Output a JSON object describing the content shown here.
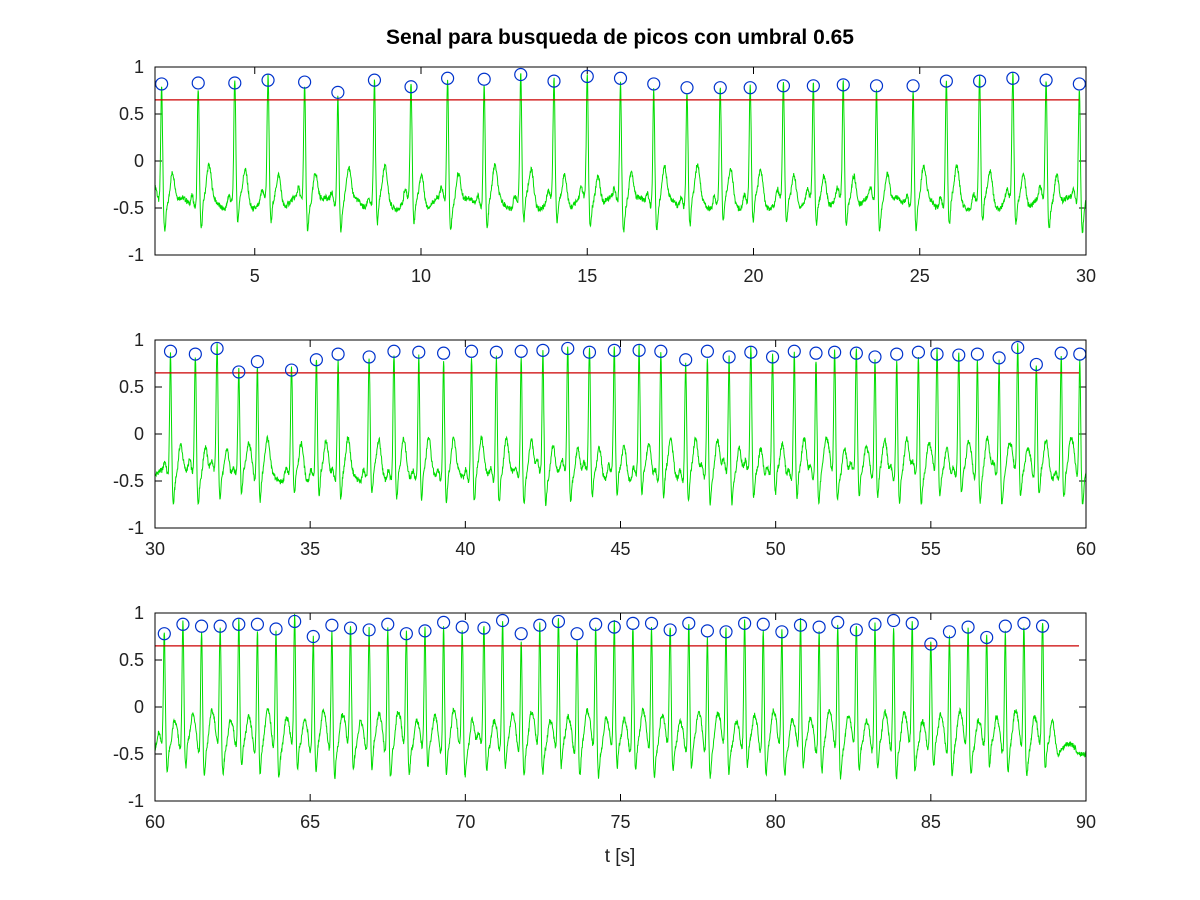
{
  "figure": {
    "title": "Senal para busqueda de picos con umbral 0.65",
    "xlabel": "t [s]"
  },
  "colors": {
    "signal": "#00dd00",
    "threshold": "#cc0000",
    "peaks": "#0033cc",
    "axes": "#000000"
  },
  "chart_data": [
    {
      "type": "line",
      "xlim": [
        2,
        30
      ],
      "ylim": [
        -1,
        1
      ],
      "xticks": [
        5,
        10,
        15,
        20,
        25,
        30
      ],
      "yticks": [
        -1,
        -0.5,
        0,
        0.5,
        1
      ],
      "threshold": 0.65,
      "peaks_x": [
        2.2,
        3.3,
        4.4,
        5.4,
        6.5,
        7.5,
        8.6,
        9.7,
        10.8,
        11.9,
        13.0,
        14.0,
        15.0,
        16.0,
        17.0,
        18.0,
        19.0,
        19.9,
        20.9,
        21.8,
        22.7,
        23.7,
        24.8,
        25.8,
        26.8,
        27.8,
        28.8,
        29.8
      ],
      "peaks_y": [
        0.82,
        0.83,
        0.83,
        0.86,
        0.84,
        0.73,
        0.86,
        0.79,
        0.88,
        0.87,
        0.92,
        0.85,
        0.9,
        0.88,
        0.82,
        0.78,
        0.78,
        0.78,
        0.8,
        0.8,
        0.81,
        0.8,
        0.8,
        0.85,
        0.85,
        0.88,
        0.86,
        0.82
      ]
    },
    {
      "type": "line",
      "xlim": [
        30,
        60
      ],
      "ylim": [
        -1,
        1
      ],
      "xticks": [
        30,
        35,
        40,
        45,
        50,
        55,
        60
      ],
      "yticks": [
        -1,
        -0.5,
        0,
        0.5,
        1
      ],
      "threshold": 0.65,
      "peaks_x": [
        30.5,
        31.3,
        32.0,
        32.7,
        33.3,
        34.4,
        35.2,
        35.9,
        36.9,
        37.7,
        38.5,
        39.3,
        40.2,
        41.0,
        41.8,
        42.5,
        43.3,
        44.0,
        44.8,
        45.6,
        46.3,
        47.1,
        47.8,
        48.5,
        49.2,
        49.9,
        50.6,
        51.3,
        51.9,
        52.6,
        53.2,
        53.9,
        54.6,
        55.2,
        55.9,
        56.5,
        57.2,
        57.8,
        58.4,
        59.2,
        59.8
      ],
      "peaks_y": [
        0.88,
        0.85,
        0.91,
        0.66,
        0.77,
        0.68,
        0.79,
        0.85,
        0.82,
        0.88,
        0.87,
        0.86,
        0.88,
        0.87,
        0.88,
        0.89,
        0.91,
        0.87,
        0.89,
        0.89,
        0.88,
        0.79,
        0.88,
        0.82,
        0.87,
        0.82,
        0.88,
        0.86,
        0.87,
        0.86,
        0.82,
        0.85,
        0.87,
        0.85,
        0.84,
        0.85,
        0.81,
        0.92,
        0.74,
        0.86,
        0.85
      ]
    },
    {
      "type": "line",
      "xlim": [
        60,
        90
      ],
      "ylim": [
        -1,
        1
      ],
      "xticks": [
        60,
        65,
        70,
        75,
        80,
        85,
        90
      ],
      "yticks": [
        -1,
        -0.5,
        0,
        0.5,
        1
      ],
      "threshold": 0.65,
      "peaks_x": [
        60.3,
        60.9,
        61.5,
        62.1,
        62.7,
        63.3,
        63.9,
        64.5,
        65.1,
        65.7,
        66.3,
        66.9,
        67.5,
        68.1,
        68.7,
        69.3,
        69.9,
        70.6,
        71.2,
        71.8,
        72.4,
        73.0,
        73.6,
        74.2,
        74.8,
        75.4,
        76.0,
        76.6,
        77.2,
        77.8,
        78.4,
        79.0,
        79.6,
        80.2,
        80.8,
        81.4,
        82.0,
        82.6,
        83.2,
        83.8,
        84.4,
        85.0,
        85.6,
        86.2,
        86.8,
        87.4,
        88.0,
        88.6
      ],
      "peaks_y": [
        0.78,
        0.88,
        0.86,
        0.86,
        0.88,
        0.88,
        0.83,
        0.91,
        0.75,
        0.87,
        0.84,
        0.82,
        0.88,
        0.78,
        0.81,
        0.9,
        0.85,
        0.84,
        0.92,
        0.78,
        0.87,
        0.91,
        0.78,
        0.88,
        0.85,
        0.89,
        0.89,
        0.82,
        0.89,
        0.81,
        0.8,
        0.89,
        0.88,
        0.8,
        0.87,
        0.85,
        0.9,
        0.82,
        0.88,
        0.92,
        0.89,
        0.67,
        0.8,
        0.85,
        0.74,
        0.86,
        0.89,
        0.86
      ]
    }
  ]
}
